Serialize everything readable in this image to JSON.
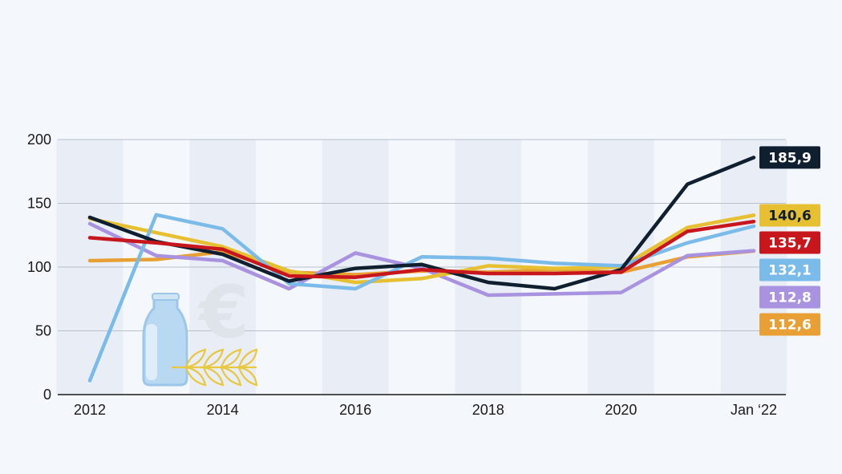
{
  "chart_data": {
    "type": "line",
    "title": "",
    "xlabel": "",
    "ylabel": "",
    "x_tick_labels": [
      "2012",
      "2014",
      "2016",
      "2018",
      "2020",
      "Jan ‘22"
    ],
    "y_tick_labels": [
      "0",
      "50",
      "100",
      "150",
      "200"
    ],
    "ylim": [
      0,
      200
    ],
    "grid": true,
    "x": [
      2012,
      2013,
      2014,
      2015,
      2016,
      2017,
      2018,
      2019,
      2020,
      2021,
      2022
    ],
    "series": [
      {
        "color": "#e8a035",
        "values": [
          105,
          106,
          112,
          96,
          94,
          97,
          96,
          98,
          96,
          108,
          112.6
        ],
        "end_label": "112,6",
        "label_text_color": "#ffffff"
      },
      {
        "color": "#a993e0",
        "values": [
          134,
          109,
          105,
          83,
          111,
          99,
          78,
          79,
          80,
          109,
          112.8
        ],
        "end_label": "112,8",
        "label_text_color": "#ffffff"
      },
      {
        "color": "#e6c030",
        "values": [
          138,
          127,
          116,
          97,
          88,
          91,
          101,
          99,
          100,
          131,
          140.6
        ],
        "end_label": "140,6",
        "label_text_color": "#0f1f30"
      },
      {
        "color": "#7bbbea",
        "values": [
          11,
          141,
          130,
          87,
          83,
          108,
          107,
          103,
          101,
          119,
          132.1
        ],
        "end_label": "132,1",
        "label_text_color": "#ffffff"
      },
      {
        "color": "#0f1f30",
        "values": [
          139,
          120,
          110,
          89,
          99,
          102,
          88,
          83,
          98,
          165,
          185.9
        ],
        "end_label": "185,9",
        "label_text_color": "#ffffff"
      },
      {
        "color": "#c8161d",
        "values": [
          123,
          119,
          114,
          93,
          92,
          98,
          95,
          95,
          96,
          128,
          135.7
        ],
        "end_label": "135,7",
        "label_text_color": "#ffffff"
      }
    ]
  },
  "decoration": {
    "illustration": "milk-bottle-euro-wheat-icon"
  }
}
